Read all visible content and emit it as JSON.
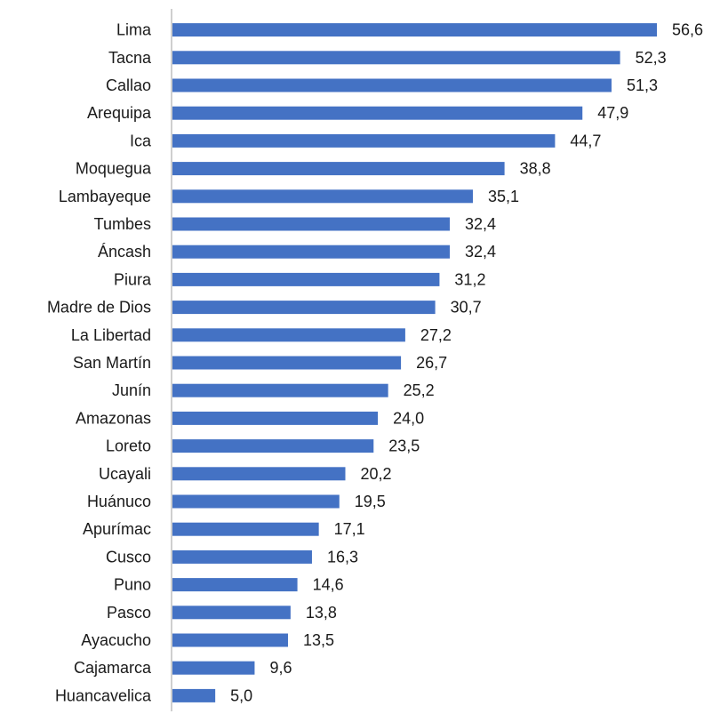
{
  "chart_data": {
    "type": "bar",
    "orientation": "horizontal",
    "categories": [
      "Lima",
      "Tacna",
      "Callao",
      "Arequipa",
      "Ica",
      "Moquegua",
      "Lambayeque",
      "Tumbes",
      "Áncash",
      "Piura",
      "Madre de Dios",
      "La Libertad",
      "San Martín",
      "Junín",
      "Amazonas",
      "Loreto",
      "Ucayali",
      "Huánuco",
      "Apurímac",
      "Cusco",
      "Puno",
      "Pasco",
      "Ayacucho",
      "Cajamarca",
      "Huancavelica"
    ],
    "values": [
      56.6,
      52.3,
      51.3,
      47.9,
      44.7,
      38.8,
      35.1,
      32.4,
      32.4,
      31.2,
      30.7,
      27.2,
      26.7,
      25.2,
      24.0,
      23.5,
      20.2,
      19.5,
      17.1,
      16.3,
      14.6,
      13.8,
      13.5,
      9.6,
      5.0
    ],
    "value_labels": [
      "56,6",
      "52,3",
      "51,3",
      "47,9",
      "44,7",
      "38,8",
      "35,1",
      "32,4",
      "32,4",
      "31,2",
      "30,7",
      "27,2",
      "26,7",
      "25,2",
      "24,0",
      "23,5",
      "20,2",
      "19,5",
      "17,1",
      "16,3",
      "14,6",
      "13,8",
      "13,5",
      "9,6",
      "5,0"
    ],
    "xlim": [
      0,
      56.6
    ],
    "grid": false,
    "bar_color": "#4472C4",
    "axis_color": "#bfbfbf"
  }
}
